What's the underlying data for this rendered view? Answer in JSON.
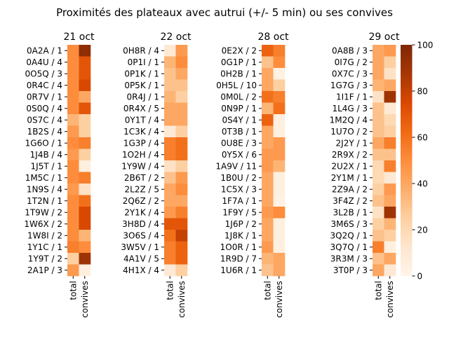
{
  "chart_data": {
    "type": "heatmap",
    "title": "Proximités des plateaux avec autrui (+/- 5 min) ou ses convives",
    "columns": [
      "total",
      "convives"
    ],
    "colorbar": {
      "min": 0,
      "max": 100,
      "ticks": [
        "0",
        "20",
        "40",
        "60",
        "80",
        "100"
      ],
      "colormap": "Oranges"
    },
    "panels": [
      {
        "title": "21 oct",
        "rows": [
          "0A2A / 1",
          "0A4U / 4",
          "0O5Q / 3",
          "0R4C / 4",
          "0R7V / 1",
          "0S0Q / 4",
          "0S7C / 4",
          "1B2S / 4",
          "1G6O / 1",
          "1J4B / 4",
          "1J5T / 1",
          "1M5C / 1",
          "1N9S / 4",
          "1T2N / 1",
          "1T9W / 2",
          "1W6X / 2",
          "1W8I / 2",
          "1Y1C / 1",
          "1Y9T / 2",
          "2A1P / 3"
        ],
        "values": [
          [
            50,
            95
          ],
          [
            50,
            70
          ],
          [
            50,
            70
          ],
          [
            50,
            75
          ],
          [
            50,
            40
          ],
          [
            50,
            70
          ],
          [
            35,
            25
          ],
          [
            45,
            25
          ],
          [
            50,
            55
          ],
          [
            45,
            25
          ],
          [
            50,
            5
          ],
          [
            50,
            55
          ],
          [
            45,
            15
          ],
          [
            50,
            60
          ],
          [
            50,
            75
          ],
          [
            50,
            75
          ],
          [
            50,
            35
          ],
          [
            55,
            50
          ],
          [
            25,
            90
          ],
          [
            45,
            5
          ]
        ]
      },
      {
        "title": "22 oct",
        "rows": [
          "0H8R / 4",
          "0P1I / 1",
          "0P1K / 1",
          "0P5K / 1",
          "0R4J / 1",
          "0R4X / 5",
          "0Y1T / 4",
          "1C3K / 4",
          "1G3P / 4",
          "1O2H / 4",
          "1Y9W / 4",
          "2B6T / 2",
          "2L2Z / 5",
          "2Q6Z / 2",
          "2Y1K / 4",
          "3H8D / 4",
          "3O6S / 4",
          "3W5V / 1",
          "4A1V / 5",
          "4H1X / 4"
        ],
        "values": [
          [
            10,
            45
          ],
          [
            35,
            50
          ],
          [
            30,
            40
          ],
          [
            30,
            30
          ],
          [
            35,
            25
          ],
          [
            40,
            40
          ],
          [
            40,
            40
          ],
          [
            10,
            25
          ],
          [
            55,
            60
          ],
          [
            55,
            60
          ],
          [
            15,
            25
          ],
          [
            30,
            45
          ],
          [
            40,
            50
          ],
          [
            40,
            40
          ],
          [
            45,
            55
          ],
          [
            70,
            70
          ],
          [
            60,
            80
          ],
          [
            55,
            65
          ],
          [
            55,
            65
          ],
          [
            10,
            25
          ]
        ]
      },
      {
        "title": "28 oct",
        "rows": [
          "0E2X / 2",
          "0G1P / 1",
          "0H2B / 1",
          "0H5L / 10",
          "0M0L / 2",
          "0N9P / 1",
          "0S4Y / 1",
          "0T3B / 1",
          "0U8E / 3",
          "0Y5X / 6",
          "1A9V / 11",
          "1B0U / 2",
          "1C5X / 3",
          "1F7A / 1",
          "1F9Y / 5",
          "1J6P / 2",
          "1J8K / 1",
          "1O0R / 1",
          "1R9D / 7",
          "1U6R / 1"
        ],
        "values": [
          [
            65,
            55
          ],
          [
            30,
            50
          ],
          [
            40,
            3
          ],
          [
            40,
            25
          ],
          [
            60,
            55
          ],
          [
            35,
            60
          ],
          [
            65,
            5
          ],
          [
            40,
            5
          ],
          [
            40,
            45
          ],
          [
            45,
            45
          ],
          [
            45,
            35
          ],
          [
            40,
            5
          ],
          [
            40,
            5
          ],
          [
            40,
            3
          ],
          [
            45,
            50
          ],
          [
            40,
            5
          ],
          [
            40,
            5
          ],
          [
            45,
            5
          ],
          [
            35,
            40
          ],
          [
            30,
            40
          ]
        ]
      },
      {
        "title": "29 oct",
        "rows": [
          "0A8B / 3",
          "0I7G / 2",
          "0X7C / 3",
          "1G7G / 3",
          "1I1F / 1",
          "1L4G / 3",
          "1M2Q / 4",
          "1U7O / 2",
          "2J2Y / 1",
          "2R9X / 2",
          "2U2X / 1",
          "2Y1M / 1",
          "2Z9A / 2",
          "3F4Z / 2",
          "3L2B / 1",
          "3M6S / 3",
          "3Q2Q / 1",
          "3Q7Q / 1",
          "3R3M / 3",
          "3T0P / 3"
        ],
        "values": [
          [
            40,
            45
          ],
          [
            40,
            25
          ],
          [
            40,
            15
          ],
          [
            35,
            40
          ],
          [
            15,
            90
          ],
          [
            30,
            10
          ],
          [
            30,
            20
          ],
          [
            30,
            25
          ],
          [
            40,
            55
          ],
          [
            30,
            30
          ],
          [
            20,
            55
          ],
          [
            20,
            10
          ],
          [
            25,
            45
          ],
          [
            30,
            40
          ],
          [
            15,
            90
          ],
          [
            25,
            35
          ],
          [
            30,
            25
          ],
          [
            55,
            5
          ],
          [
            30,
            40
          ],
          [
            40,
            10
          ]
        ]
      }
    ]
  }
}
